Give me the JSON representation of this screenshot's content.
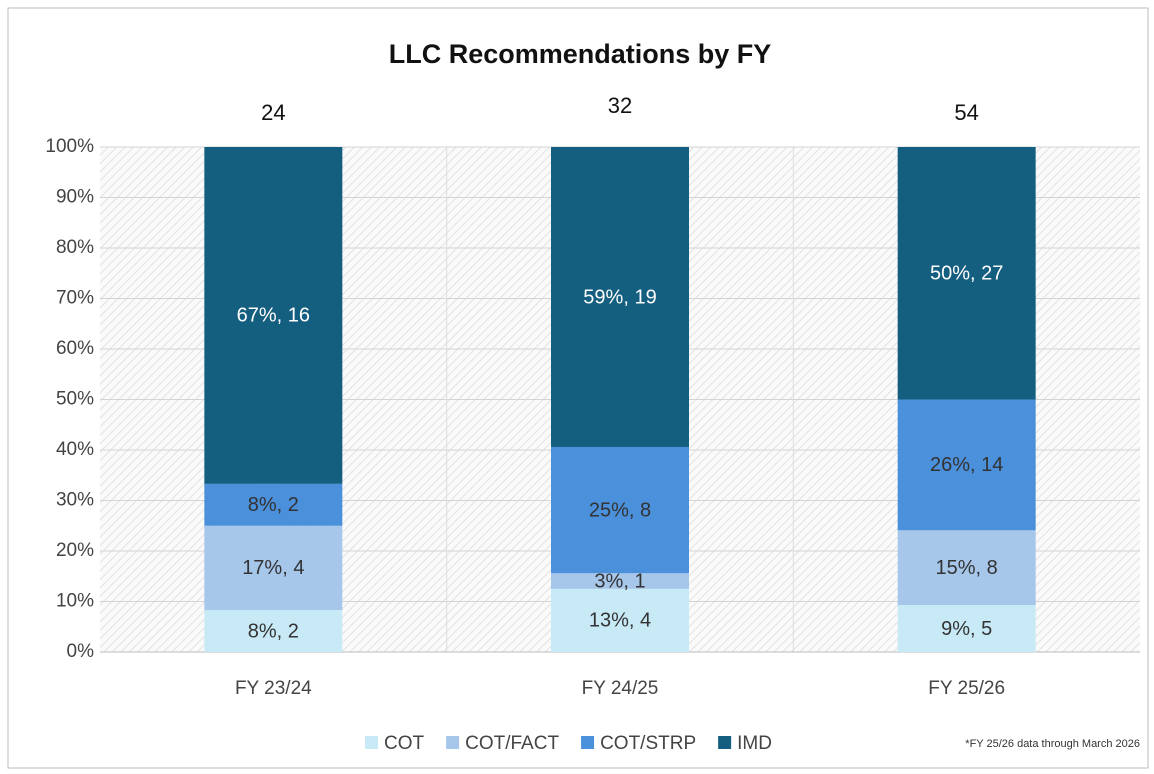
{
  "chart_data": {
    "type": "stacked_bar_100",
    "title": "LLC Recommendations by FY",
    "note": "*FY 25/26 data through March 2026",
    "categories": [
      "FY 23/24",
      "FY 24/25",
      "FY 25/26"
    ],
    "totals": [
      24,
      32,
      54
    ],
    "series": [
      {
        "name": "COT",
        "color": "#c8eaf6",
        "label_color": "#333333",
        "values": [
          8.3,
          12.5,
          9.3
        ],
        "value_labels": [
          "8%, 2",
          "13%, 4",
          "9%, 5"
        ]
      },
      {
        "name": "COT/FACT",
        "color": "#a6c6ea",
        "label_color": "#333333",
        "values": [
          16.7,
          3.1,
          14.8
        ],
        "value_labels": [
          "17%, 4",
          "3%, 1",
          "15%, 8"
        ]
      },
      {
        "name": "COT/STRP",
        "color": "#4b90da",
        "label_color": "#333333",
        "values": [
          8.3,
          25,
          25.9
        ],
        "value_labels": [
          "8%, 2",
          "25%, 8",
          "26%, 14"
        ]
      },
      {
        "name": "IMD",
        "color": "#145e80",
        "label_color": "#ffffff",
        "values": [
          66.7,
          59.4,
          50
        ],
        "value_labels": [
          "67%, 16",
          "59%, 19",
          "50%, 27"
        ]
      }
    ],
    "ylim": [
      0,
      100
    ],
    "yticks": [
      {
        "value": 0,
        "label": "0%"
      },
      {
        "value": 10,
        "label": "10%"
      },
      {
        "value": 20,
        "label": "20%"
      },
      {
        "value": 30,
        "label": "30%"
      },
      {
        "value": 40,
        "label": "40%"
      },
      {
        "value": 50,
        "label": "50%"
      },
      {
        "value": 60,
        "label": "60%"
      },
      {
        "value": 70,
        "label": "70%"
      },
      {
        "value": 80,
        "label": "80%"
      },
      {
        "value": 90,
        "label": "90%"
      },
      {
        "value": 100,
        "label": "100%"
      }
    ],
    "grid": true,
    "legend": "bottom"
  }
}
